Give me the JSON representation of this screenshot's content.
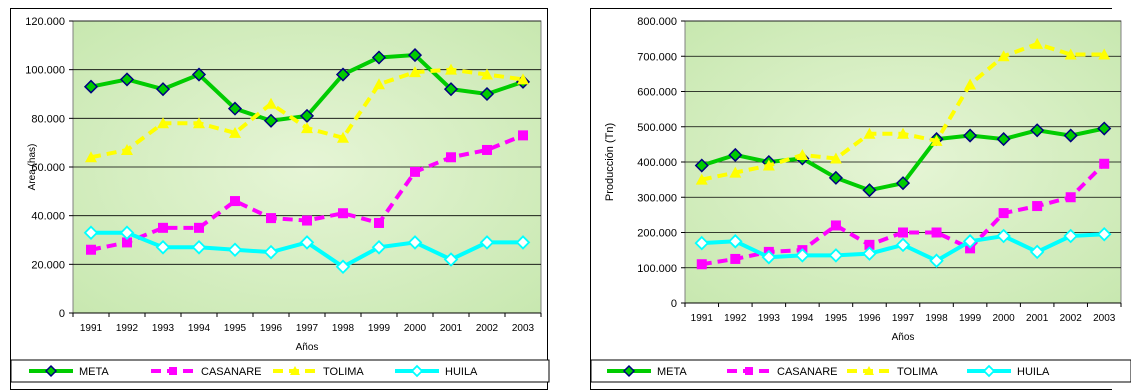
{
  "chart_data": [
    {
      "type": "line",
      "title": "",
      "xlabel": "Años",
      "ylabel": "Area (has)",
      "ylim": [
        0,
        120000
      ],
      "y_ticks": [
        "0",
        "20.000",
        "40.000",
        "60.000",
        "80.000",
        "100.000",
        "120.000"
      ],
      "categories": [
        "1991",
        "1992",
        "1993",
        "1994",
        "1995",
        "1996",
        "1997",
        "1998",
        "1999",
        "2000",
        "2001",
        "2002",
        "2003"
      ],
      "grid": "horizontal",
      "legend_position": "bottom",
      "series": [
        {
          "name": "META",
          "color": "#00cc00",
          "marker": "diamond",
          "values": [
            93000,
            96000,
            92000,
            98000,
            84000,
            79000,
            81000,
            98000,
            105000,
            106000,
            92000,
            90000,
            95000
          ]
        },
        {
          "name": "CASANARE",
          "color": "#ff00ff",
          "marker": "square",
          "values": [
            26000,
            29000,
            35000,
            35000,
            46000,
            39000,
            38000,
            41000,
            37000,
            58000,
            64000,
            67000,
            73000
          ]
        },
        {
          "name": "TOLIMA",
          "color": "#ffff00",
          "marker": "triangle",
          "values": [
            64000,
            67000,
            78000,
            78000,
            74000,
            86000,
            76000,
            72000,
            94000,
            99000,
            100000,
            98000,
            96000
          ]
        },
        {
          "name": "HUILA",
          "color": "#00ffff",
          "marker": "open-diamond",
          "values": [
            33000,
            33000,
            27000,
            27000,
            26000,
            25000,
            29000,
            19000,
            27000,
            29000,
            22000,
            29000,
            29000
          ]
        }
      ]
    },
    {
      "type": "line",
      "title": "",
      "xlabel": "Años",
      "ylabel": "Producción (Tn)",
      "ylim": [
        0,
        800000
      ],
      "y_ticks": [
        "0",
        "100.000",
        "200.000",
        "300.000",
        "400.000",
        "500.000",
        "600.000",
        "700.000",
        "800.000"
      ],
      "categories": [
        "1991",
        "1992",
        "1993",
        "1994",
        "1995",
        "1996",
        "1997",
        "1998",
        "1999",
        "2000",
        "2001",
        "2002",
        "2003"
      ],
      "grid": "horizontal",
      "legend_position": "bottom",
      "series": [
        {
          "name": "META",
          "color": "#00cc00",
          "marker": "diamond",
          "values": [
            390000,
            420000,
            400000,
            410000,
            355000,
            320000,
            340000,
            465000,
            475000,
            465000,
            490000,
            475000,
            495000
          ]
        },
        {
          "name": "CASANARE",
          "color": "#ff00ff",
          "marker": "square",
          "values": [
            110000,
            125000,
            145000,
            150000,
            220000,
            165000,
            200000,
            200000,
            155000,
            255000,
            275000,
            300000,
            395000
          ]
        },
        {
          "name": "TOLIMA",
          "color": "#ffff00",
          "marker": "triangle",
          "values": [
            350000,
            370000,
            390000,
            420000,
            410000,
            480000,
            480000,
            460000,
            620000,
            700000,
            735000,
            705000,
            705000
          ]
        },
        {
          "name": "HUILA",
          "color": "#00ffff",
          "marker": "open-diamond",
          "values": [
            170000,
            175000,
            130000,
            135000,
            135000,
            140000,
            165000,
            120000,
            175000,
            190000,
            145000,
            190000,
            195000
          ]
        }
      ]
    }
  ]
}
